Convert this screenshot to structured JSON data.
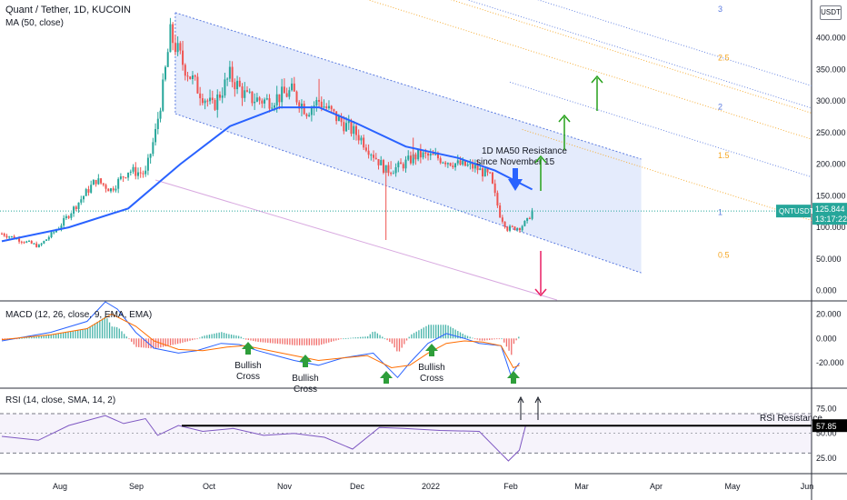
{
  "header": {
    "symbol_title": "Quant / Tether, 1D, KUCOIN",
    "ma_label": "MA (50, close)",
    "macd_label": "MACD (12, 26, close, 9, EMA, EMA)",
    "rsi_label": "RSI (14, close, SMA, 14, 2)",
    "currency_button": "USDT"
  },
  "colors": {
    "candle_up": "#26a69a",
    "candle_down": "#ef5350",
    "ma_line": "#2962ff",
    "channel_fill": "#dbe4fb",
    "macd_line": "#2962ff",
    "signal_line": "#ff6d00",
    "rsi_line": "#7e57c2",
    "arrow_up": "#26a11a",
    "arrow_down": "#e91e63"
  },
  "annotations": {
    "ma50_resistance_line1": "1D MA50 Resistance",
    "ma50_resistance_line2": "since November 15",
    "bullish_cross": [
      "Bullish",
      "Cross"
    ],
    "rsi_resistance": "RSI Resistance",
    "fib_levels": [
      "3",
      "2.5",
      "2",
      "1.5",
      "1",
      "0.5"
    ]
  },
  "price_tag": {
    "symbol": "QNTUSDT",
    "price": "125.844",
    "countdown": "13:17:22"
  },
  "rsi_tag": "57.85",
  "chart_data": [
    {
      "type": "candlestick",
      "title": "Quant / Tether, 1D, KUCOIN",
      "x_ticks": [
        "Aug",
        "Sep",
        "Oct",
        "Nov",
        "Dec",
        "2022",
        "Feb",
        "Mar",
        "Apr",
        "May",
        "Jun"
      ],
      "y_ticks": [
        "400.000",
        "350.000",
        "300.000",
        "250.000",
        "200.000",
        "150.000",
        "100.000",
        "50.000",
        "0.000"
      ],
      "ylim": [
        -15,
        460
      ],
      "date_range": [
        "2021-07-05",
        "2022-02-04"
      ],
      "close_anchors": [
        {
          "date": "2021-07-05",
          "close": 90
        },
        {
          "date": "2021-07-20",
          "close": 70
        },
        {
          "date": "2021-07-28",
          "close": 100
        },
        {
          "date": "2021-08-05",
          "close": 140
        },
        {
          "date": "2021-08-12",
          "close": 175
        },
        {
          "date": "2021-08-18",
          "close": 160
        },
        {
          "date": "2021-08-25",
          "close": 190
        },
        {
          "date": "2021-09-01",
          "close": 185
        },
        {
          "date": "2021-09-05",
          "close": 250
        },
        {
          "date": "2021-09-08",
          "close": 320
        },
        {
          "date": "2021-09-11",
          "close": 405
        },
        {
          "date": "2021-09-16",
          "close": 360
        },
        {
          "date": "2021-09-22",
          "close": 320
        },
        {
          "date": "2021-09-28",
          "close": 290
        },
        {
          "date": "2021-10-05",
          "close": 340
        },
        {
          "date": "2021-10-12",
          "close": 305
        },
        {
          "date": "2021-10-20",
          "close": 300
        },
        {
          "date": "2021-10-30",
          "close": 315
        },
        {
          "date": "2021-11-05",
          "close": 285
        },
        {
          "date": "2021-11-10",
          "close": 300
        },
        {
          "date": "2021-11-18",
          "close": 270
        },
        {
          "date": "2021-11-26",
          "close": 245
        },
        {
          "date": "2021-12-03",
          "close": 210
        },
        {
          "date": "2021-12-07",
          "close": 190
        },
        {
          "date": "2021-12-12",
          "close": 195
        },
        {
          "date": "2021-12-20",
          "close": 215
        },
        {
          "date": "2021-12-28",
          "close": 210
        },
        {
          "date": "2022-01-05",
          "close": 200
        },
        {
          "date": "2022-01-12",
          "close": 195
        },
        {
          "date": "2022-01-18",
          "close": 180
        },
        {
          "date": "2022-01-22",
          "close": 120
        },
        {
          "date": "2022-01-25",
          "close": 98
        },
        {
          "date": "2022-01-30",
          "close": 100
        },
        {
          "date": "2022-02-02",
          "close": 110
        },
        {
          "date": "2022-02-04",
          "close": 126
        }
      ],
      "ma50": [
        {
          "date": "2021-07-05",
          "value": 78
        },
        {
          "date": "2021-08-01",
          "value": 100
        },
        {
          "date": "2021-08-25",
          "value": 130
        },
        {
          "date": "2021-09-15",
          "value": 200
        },
        {
          "date": "2021-10-05",
          "value": 260
        },
        {
          "date": "2021-10-25",
          "value": 290
        },
        {
          "date": "2021-11-10",
          "value": 290
        },
        {
          "date": "2021-11-25",
          "value": 265
        },
        {
          "date": "2021-12-15",
          "value": 228
        },
        {
          "date": "2022-01-05",
          "value": 210
        },
        {
          "date": "2022-01-20",
          "value": 190
        },
        {
          "date": "2022-02-04",
          "value": 160
        }
      ],
      "current_price": 125.844
    },
    {
      "type": "bar",
      "title": "MACD (12, 26, close, 9, EMA, EMA)",
      "y_ticks": [
        "20.000",
        "0.000",
        "-20.000"
      ],
      "ylim": [
        -40,
        30
      ],
      "series": [
        {
          "name": "MACD",
          "points": [
            [
              0,
              -2
            ],
            [
              40,
              5
            ],
            [
              70,
              14
            ],
            [
              85,
              30
            ],
            [
              95,
              24
            ],
            [
              110,
              5
            ],
            [
              125,
              -8
            ],
            [
              145,
              -12
            ],
            [
              160,
              -10
            ],
            [
              180,
              -4
            ],
            [
              195,
              -5
            ],
            [
              210,
              -10
            ],
            [
              225,
              -14
            ],
            [
              240,
              -18
            ],
            [
              260,
              -22
            ],
            [
              280,
              -16
            ],
            [
              305,
              -12
            ],
            [
              325,
              -32
            ],
            [
              335,
              -20
            ],
            [
              350,
              -4
            ],
            [
              365,
              4
            ],
            [
              380,
              0
            ],
            [
              392,
              -4
            ],
            [
              410,
              -6
            ],
            [
              418,
              -30
            ],
            [
              425,
              -20
            ]
          ]
        },
        {
          "name": "Signal",
          "points": [
            [
              0,
              -1
            ],
            [
              40,
              3
            ],
            [
              70,
              8
            ],
            [
              90,
              20
            ],
            [
              110,
              10
            ],
            [
              125,
              -2
            ],
            [
              145,
              -9
            ],
            [
              165,
              -10
            ],
            [
              185,
              -7
            ],
            [
              200,
              -6
            ],
            [
              220,
              -10
            ],
            [
              240,
              -14
            ],
            [
              260,
              -18
            ],
            [
              280,
              -16
            ],
            [
              300,
              -14
            ],
            [
              320,
              -24
            ],
            [
              335,
              -22
            ],
            [
              350,
              -12
            ],
            [
              365,
              -4
            ],
            [
              380,
              -2
            ],
            [
              395,
              -3
            ],
            [
              410,
              -6
            ],
            [
              420,
              -24
            ],
            [
              425,
              -22
            ]
          ]
        }
      ]
    },
    {
      "type": "line",
      "title": "RSI (14, close, SMA, 14, 2)",
      "y_ticks": [
        "75.00",
        "50.00",
        "25.00"
      ],
      "ylim": [
        10,
        95
      ],
      "series": [
        {
          "name": "RSI",
          "points": [
            [
              0,
              47
            ],
            [
              30,
              43
            ],
            [
              55,
              58
            ],
            [
              85,
              68
            ],
            [
              100,
              60
            ],
            [
              118,
              65
            ],
            [
              128,
              48
            ],
            [
              145,
              58
            ],
            [
              165,
              52
            ],
            [
              190,
              55
            ],
            [
              215,
              48
            ],
            [
              240,
              50
            ],
            [
              265,
              46
            ],
            [
              288,
              34
            ],
            [
              310,
              56
            ],
            [
              330,
              55
            ],
            [
              360,
              53
            ],
            [
              392,
              52
            ],
            [
              408,
              32
            ],
            [
              416,
              22
            ],
            [
              425,
              33
            ],
            [
              430,
              57
            ]
          ]
        }
      ],
      "resistance": 57.85,
      "band": [
        30,
        70
      ]
    }
  ]
}
